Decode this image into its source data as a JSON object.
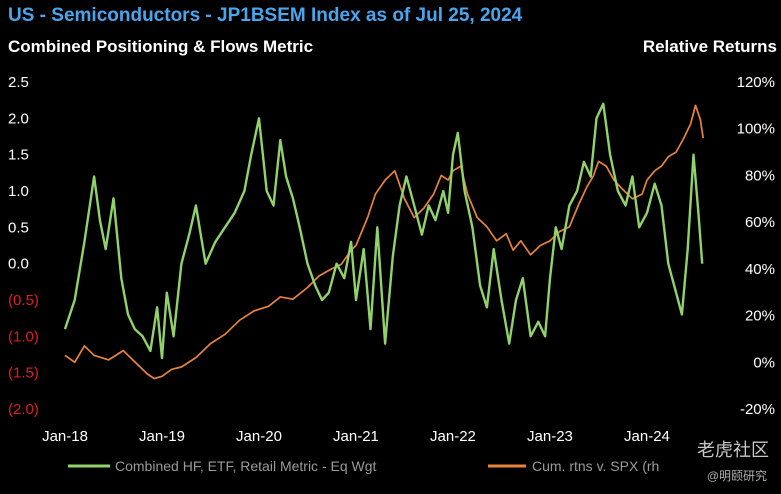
{
  "header": {
    "title": "US - Semiconductors - JP1BSEM Index as of Jul 25, 2024",
    "left_axis_title": "Combined Positioning & Flows Metric",
    "right_axis_title": "Relative Returns"
  },
  "colors": {
    "title": "#49a6ee",
    "green_series": "#92d26a",
    "orange_series": "#e8843a",
    "negative_tick": "#e01e1e",
    "background": "#000000"
  },
  "watermark": {
    "brand": "老虎社区",
    "sub": "@明颐研究"
  },
  "chart_data": {
    "type": "line",
    "title": "US - Semiconductors - JP1BSEM Index as of Jul 25, 2024",
    "left_axis": {
      "label": "Combined Positioning & Flows Metric",
      "ylim": [
        -2.0,
        2.5
      ],
      "ticks": [
        2.5,
        2.0,
        1.5,
        1.0,
        0.5,
        0.0,
        -0.5,
        -1.0,
        -1.5,
        -2.0
      ],
      "tick_labels": [
        "2.5",
        "2.0",
        "1.5",
        "1.0",
        "0.5",
        "0.0",
        "(0.5)",
        "(1.0)",
        "(1.5)",
        "(2.0)"
      ]
    },
    "right_axis": {
      "label": "Relative Returns",
      "ylim": [
        -20,
        120
      ],
      "ticks": [
        120,
        100,
        80,
        60,
        40,
        20,
        0,
        -20
      ],
      "tick_labels": [
        "120%",
        "100%",
        "80%",
        "60%",
        "40%",
        "20%",
        "0%",
        "-20%"
      ]
    },
    "x_axis": {
      "range": [
        2018.0,
        2024.65
      ],
      "ticks": [
        2018,
        2019,
        2020,
        2021,
        2022,
        2023,
        2024
      ],
      "tick_labels": [
        "Jan-18",
        "Jan-19",
        "Jan-20",
        "Jan-21",
        "Jan-22",
        "Jan-23",
        "Jan-24"
      ]
    },
    "series": [
      {
        "name": "Combined HF, ETF, Retail Metric - Eq Wgt",
        "legend_label": "Combined HF, ETF, Retail Metric - Eq Wgt",
        "axis": "left",
        "color": "#92d26a",
        "x": [
          2018.0,
          2018.1,
          2018.2,
          2018.3,
          2018.36,
          2018.42,
          2018.5,
          2018.58,
          2018.65,
          2018.72,
          2018.8,
          2018.88,
          2018.95,
          2019.0,
          2019.05,
          2019.12,
          2019.2,
          2019.28,
          2019.35,
          2019.45,
          2019.55,
          2019.65,
          2019.75,
          2019.85,
          2019.92,
          2020.0,
          2020.08,
          2020.15,
          2020.22,
          2020.28,
          2020.35,
          2020.42,
          2020.5,
          2020.58,
          2020.65,
          2020.72,
          2020.8,
          2020.88,
          2020.95,
          2021.0,
          2021.08,
          2021.15,
          2021.22,
          2021.3,
          2021.38,
          2021.45,
          2021.52,
          2021.6,
          2021.68,
          2021.75,
          2021.82,
          2021.9,
          2021.95,
          2022.0,
          2022.05,
          2022.12,
          2022.2,
          2022.28,
          2022.35,
          2022.42,
          2022.5,
          2022.58,
          2022.65,
          2022.72,
          2022.8,
          2022.88,
          2022.95,
          2023.0,
          2023.06,
          2023.12,
          2023.2,
          2023.28,
          2023.35,
          2023.42,
          2023.48,
          2023.55,
          2023.62,
          2023.7,
          2023.78,
          2023.85,
          2023.92,
          2024.0,
          2024.08,
          2024.15,
          2024.22,
          2024.3,
          2024.36,
          2024.42,
          2024.48,
          2024.53,
          2024.57
        ],
        "values": [
          -0.9,
          -0.5,
          0.3,
          1.2,
          0.6,
          0.2,
          0.9,
          -0.2,
          -0.7,
          -0.9,
          -1.0,
          -1.2,
          -0.6,
          -1.3,
          -0.4,
          -1.0,
          0.0,
          0.4,
          0.8,
          0.0,
          0.3,
          0.5,
          0.7,
          1.0,
          1.5,
          2.0,
          1.0,
          0.8,
          1.7,
          1.2,
          0.9,
          0.5,
          0.0,
          -0.3,
          -0.5,
          -0.4,
          0.0,
          -0.2,
          0.3,
          -0.5,
          0.2,
          -0.9,
          0.5,
          -1.1,
          0.1,
          0.8,
          1.2,
          0.8,
          0.4,
          0.8,
          0.6,
          1.0,
          0.7,
          1.5,
          1.8,
          1.0,
          0.5,
          -0.3,
          -0.6,
          0.2,
          -0.5,
          -1.1,
          -0.5,
          -0.2,
          -1.0,
          -0.8,
          -1.0,
          -0.2,
          0.5,
          0.2,
          0.8,
          1.0,
          1.4,
          1.2,
          2.0,
          2.2,
          1.5,
          1.0,
          0.8,
          1.2,
          0.5,
          0.7,
          1.1,
          0.8,
          0.0,
          -0.4,
          -0.7,
          0.2,
          1.5,
          0.7,
          0.0
        ]
      },
      {
        "name": "Cum. rtns v. SPX (rhs)",
        "legend_label": "Cum. rtns v. SPX (rh",
        "axis": "right",
        "color": "#e8843a",
        "x": [
          2018.0,
          2018.1,
          2018.2,
          2018.3,
          2018.45,
          2018.6,
          2018.75,
          2018.85,
          2018.92,
          2019.0,
          2019.1,
          2019.2,
          2019.35,
          2019.5,
          2019.65,
          2019.8,
          2019.95,
          2020.1,
          2020.22,
          2020.35,
          2020.5,
          2020.62,
          2020.75,
          2020.85,
          2020.95,
          2021.0,
          2021.06,
          2021.12,
          2021.2,
          2021.3,
          2021.4,
          2021.5,
          2021.6,
          2021.7,
          2021.8,
          2021.88,
          2021.95,
          2022.0,
          2022.08,
          2022.15,
          2022.25,
          2022.35,
          2022.45,
          2022.55,
          2022.62,
          2022.7,
          2022.8,
          2022.9,
          2023.0,
          2023.1,
          2023.2,
          2023.3,
          2023.38,
          2023.45,
          2023.5,
          2023.58,
          2023.66,
          2023.75,
          2023.85,
          2023.95,
          2024.0,
          2024.08,
          2024.15,
          2024.22,
          2024.3,
          2024.38,
          2024.45,
          2024.5,
          2024.55,
          2024.58
        ],
        "values": [
          3,
          0,
          7,
          3,
          1,
          5,
          -1,
          -5,
          -7,
          -6,
          -3,
          -2,
          2,
          8,
          12,
          18,
          22,
          24,
          28,
          27,
          32,
          37,
          40,
          42,
          48,
          50,
          56,
          62,
          72,
          78,
          82,
          70,
          62,
          66,
          72,
          80,
          78,
          82,
          84,
          72,
          62,
          58,
          52,
          55,
          48,
          52,
          46,
          50,
          52,
          56,
          58,
          68,
          75,
          80,
          86,
          84,
          78,
          74,
          70,
          72,
          78,
          82,
          84,
          88,
          90,
          96,
          102,
          110,
          104,
          96
        ]
      }
    ]
  }
}
